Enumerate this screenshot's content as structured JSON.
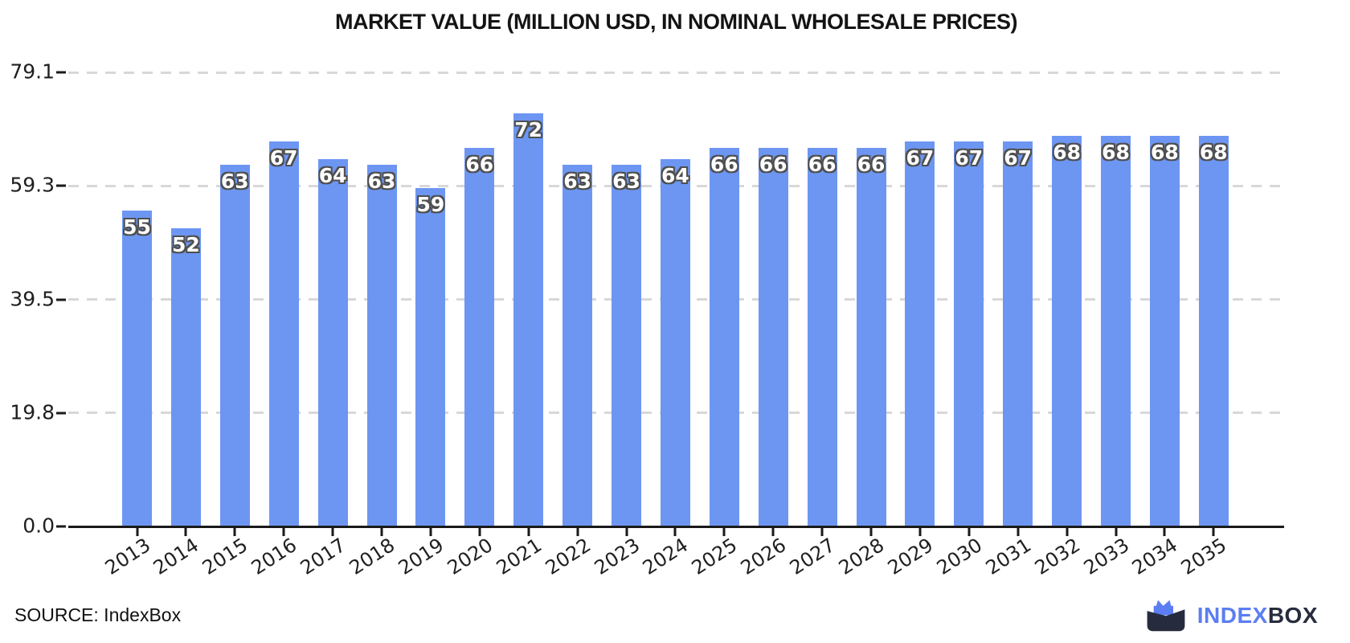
{
  "title": "MARKET VALUE (MILLION USD, IN NOMINAL WHOLESALE PRICES)",
  "source": {
    "label": "SOURCE: IndexBox"
  },
  "logo": {
    "index": "INDEX",
    "box": "BOX"
  },
  "colors": {
    "bar": "#6D96F3",
    "grid": "#D8D8D8",
    "axis": "#1A1A1A",
    "value_label": "#FFFFFF",
    "value_label_outline": "#4F4F4F",
    "logo_blue": "#5B7EF2",
    "logo_dark": "#262C3D"
  },
  "chart_data": {
    "type": "bar",
    "title": "MARKET VALUE (MILLION USD, IN NOMINAL WHOLESALE PRICES)",
    "categories": [
      "2013",
      "2014",
      "2015",
      "2016",
      "2017",
      "2018",
      "2019",
      "2020",
      "2021",
      "2022",
      "2023",
      "2024",
      "2025",
      "2026",
      "2027",
      "2028",
      "2029",
      "2030",
      "2031",
      "2032",
      "2033",
      "2034",
      "2035"
    ],
    "values": [
      55,
      52,
      63,
      67,
      64,
      63,
      59,
      66,
      72,
      63,
      63,
      64,
      66,
      66,
      66,
      66,
      67,
      67,
      67,
      68,
      68,
      68,
      68
    ],
    "bar_labels": [
      55,
      52,
      63,
      67,
      64,
      63,
      59,
      66,
      72,
      63,
      63,
      64,
      66,
      66,
      66,
      66,
      67,
      67,
      67,
      68,
      68,
      68,
      68
    ],
    "xlabel": "",
    "ylabel": "",
    "ylim": [
      0,
      79.1
    ],
    "yticks": [
      {
        "value": 0.0,
        "label": "0.0"
      },
      {
        "value": 19.8,
        "label": "19.8"
      },
      {
        "value": 39.5,
        "label": "39.5"
      },
      {
        "value": 59.3,
        "label": "59.3"
      },
      {
        "value": 79.1,
        "label": "79.1"
      }
    ],
    "grid": "horizontal-dashed",
    "legend": "none"
  }
}
